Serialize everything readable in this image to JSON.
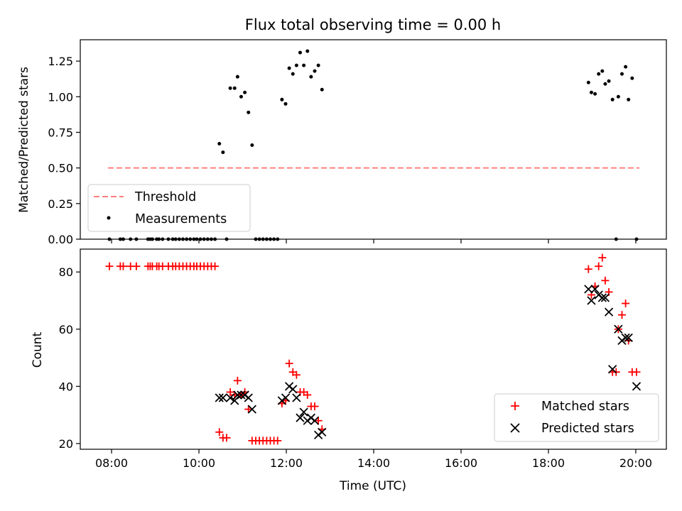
{
  "chart_data": [
    {
      "type": "scatter",
      "title": "Flux total observing time = 0.00 h",
      "xlabel": "",
      "ylabel": "Matched/Predicted stars",
      "xlim": [
        "07:17",
        "20:42"
      ],
      "ylim": [
        0,
        1.4
      ],
      "yticks": [
        "0.00",
        "0.25",
        "0.50",
        "0.75",
        "1.00",
        "1.25"
      ],
      "grid": false,
      "legend": {
        "placement": "lower-left",
        "entries": [
          {
            "label": "Threshold",
            "marker": "dashed-line",
            "color": "#ff7f7f"
          },
          {
            "label": "Measurements",
            "marker": "dot",
            "color": "#000000"
          }
        ]
      },
      "series": [
        {
          "name": "Threshold",
          "kind": "line",
          "color": "#ff7f7f",
          "style": "dashed",
          "points": [
            [
              "07:55",
              0.5
            ],
            [
              "20:05",
              0.5
            ]
          ]
        },
        {
          "name": "Measurements",
          "kind": "dots",
          "color": "#000000",
          "points": [
            [
              "07:57",
              0
            ],
            [
              "08:12",
              0
            ],
            [
              "08:16",
              0
            ],
            [
              "08:26",
              0
            ],
            [
              "08:34",
              0
            ],
            [
              "08:50",
              0
            ],
            [
              "08:53",
              0
            ],
            [
              "08:56",
              0
            ],
            [
              "09:02",
              0
            ],
            [
              "09:05",
              0
            ],
            [
              "09:10",
              0
            ],
            [
              "09:18",
              0
            ],
            [
              "09:24",
              0
            ],
            [
              "09:28",
              0
            ],
            [
              "09:33",
              0
            ],
            [
              "09:38",
              0
            ],
            [
              "09:43",
              0
            ],
            [
              "09:48",
              0
            ],
            [
              "09:53",
              0
            ],
            [
              "09:57",
              0
            ],
            [
              "10:02",
              0
            ],
            [
              "10:07",
              0
            ],
            [
              "10:12",
              0
            ],
            [
              "10:17",
              0
            ],
            [
              "10:22",
              0
            ],
            [
              "10:38",
              0
            ],
            [
              "10:28",
              0.67
            ],
            [
              "10:33",
              0.61
            ],
            [
              "10:43",
              1.06
            ],
            [
              "10:49",
              1.06
            ],
            [
              "10:53",
              1.14
            ],
            [
              "10:58",
              1.0
            ],
            [
              "11:03",
              1.03
            ],
            [
              "11:08",
              0.89
            ],
            [
              "11:13",
              0.66
            ],
            [
              "11:18",
              0
            ],
            [
              "11:23",
              0
            ],
            [
              "11:28",
              0
            ],
            [
              "11:33",
              0
            ],
            [
              "11:38",
              0
            ],
            [
              "11:43",
              0
            ],
            [
              "11:48",
              0
            ],
            [
              "11:54",
              0.98
            ],
            [
              "11:59",
              0.95
            ],
            [
              "12:04",
              1.2
            ],
            [
              "12:09",
              1.16
            ],
            [
              "12:14",
              1.22
            ],
            [
              "12:19",
              1.31
            ],
            [
              "12:24",
              1.22
            ],
            [
              "12:29",
              1.32
            ],
            [
              "12:34",
              1.14
            ],
            [
              "12:39",
              1.18
            ],
            [
              "12:44",
              1.22
            ],
            [
              "12:49",
              1.05
            ],
            [
              "18:55",
              1.1
            ],
            [
              "18:59",
              1.03
            ],
            [
              "19:04",
              1.02
            ],
            [
              "19:09",
              1.16
            ],
            [
              "19:14",
              1.18
            ],
            [
              "19:18",
              1.09
            ],
            [
              "19:23",
              1.11
            ],
            [
              "19:28",
              0.98
            ],
            [
              "19:33",
              0
            ],
            [
              "19:36",
              1.0
            ],
            [
              "19:41",
              1.16
            ],
            [
              "19:46",
              1.21
            ],
            [
              "19:50",
              0.98
            ],
            [
              "19:55",
              1.13
            ],
            [
              "20:01",
              0
            ]
          ]
        }
      ]
    },
    {
      "type": "scatter",
      "title": "",
      "xlabel": "Time (UTC)",
      "ylabel": "Count",
      "xlim": [
        "07:17",
        "20:42"
      ],
      "xticks": [
        "08:00",
        "10:00",
        "12:00",
        "14:00",
        "16:00",
        "18:00",
        "20:00"
      ],
      "ylim": [
        18,
        88
      ],
      "yticks": [
        "20",
        "40",
        "60",
        "80"
      ],
      "grid": false,
      "legend": {
        "placement": "lower-right",
        "entries": [
          {
            "label": "Matched stars",
            "marker": "plus",
            "color": "#ff0000"
          },
          {
            "label": "Predicted stars",
            "marker": "x",
            "color": "#000000"
          }
        ]
      },
      "series": [
        {
          "name": "Matched stars",
          "kind": "plus",
          "color": "#ff0000",
          "points": [
            [
              "07:57",
              82
            ],
            [
              "08:12",
              82
            ],
            [
              "08:16",
              82
            ],
            [
              "08:26",
              82
            ],
            [
              "08:34",
              82
            ],
            [
              "08:50",
              82
            ],
            [
              "08:53",
              82
            ],
            [
              "08:56",
              82
            ],
            [
              "09:02",
              82
            ],
            [
              "09:05",
              82
            ],
            [
              "09:10",
              82
            ],
            [
              "09:18",
              82
            ],
            [
              "09:24",
              82
            ],
            [
              "09:28",
              82
            ],
            [
              "09:33",
              82
            ],
            [
              "09:38",
              82
            ],
            [
              "09:43",
              82
            ],
            [
              "09:48",
              82
            ],
            [
              "09:53",
              82
            ],
            [
              "09:57",
              82
            ],
            [
              "10:02",
              82
            ],
            [
              "10:07",
              82
            ],
            [
              "10:12",
              82
            ],
            [
              "10:17",
              82
            ],
            [
              "10:22",
              82
            ],
            [
              "10:28",
              24
            ],
            [
              "10:33",
              22
            ],
            [
              "10:38",
              22
            ],
            [
              "10:43",
              38
            ],
            [
              "10:49",
              37
            ],
            [
              "10:53",
              42
            ],
            [
              "10:58",
              37
            ],
            [
              "11:03",
              38
            ],
            [
              "11:08",
              32
            ],
            [
              "11:13",
              21
            ],
            [
              "11:18",
              21
            ],
            [
              "11:23",
              21
            ],
            [
              "11:28",
              21
            ],
            [
              "11:33",
              21
            ],
            [
              "11:38",
              21
            ],
            [
              "11:43",
              21
            ],
            [
              "11:48",
              21
            ],
            [
              "11:54",
              34
            ],
            [
              "11:59",
              35
            ],
            [
              "12:04",
              48
            ],
            [
              "12:09",
              45
            ],
            [
              "12:14",
              44
            ],
            [
              "12:19",
              38
            ],
            [
              "12:24",
              38
            ],
            [
              "12:29",
              37
            ],
            [
              "12:34",
              33
            ],
            [
              "12:39",
              33
            ],
            [
              "12:44",
              28
            ],
            [
              "12:49",
              25
            ],
            [
              "18:55",
              81
            ],
            [
              "18:59",
              72
            ],
            [
              "19:04",
              75
            ],
            [
              "19:09",
              82
            ],
            [
              "19:14",
              85
            ],
            [
              "19:18",
              77
            ],
            [
              "19:23",
              73
            ],
            [
              "19:28",
              45
            ],
            [
              "19:33",
              45
            ],
            [
              "19:36",
              60
            ],
            [
              "19:41",
              65
            ],
            [
              "19:46",
              69
            ],
            [
              "19:50",
              56
            ],
            [
              "19:55",
              45
            ],
            [
              "20:01",
              45
            ]
          ]
        },
        {
          "name": "Predicted stars",
          "kind": "x",
          "color": "#000000",
          "points": [
            [
              "10:28",
              36
            ],
            [
              "10:33",
              36
            ],
            [
              "10:43",
              36
            ],
            [
              "10:49",
              35
            ],
            [
              "10:53",
              37
            ],
            [
              "10:58",
              37
            ],
            [
              "11:03",
              37
            ],
            [
              "11:08",
              36
            ],
            [
              "11:13",
              32
            ],
            [
              "11:54",
              35
            ],
            [
              "11:59",
              36
            ],
            [
              "12:04",
              40
            ],
            [
              "12:09",
              39
            ],
            [
              "12:14",
              36
            ],
            [
              "12:19",
              29
            ],
            [
              "12:24",
              31
            ],
            [
              "12:29",
              28
            ],
            [
              "12:34",
              29
            ],
            [
              "12:39",
              28
            ],
            [
              "12:44",
              23
            ],
            [
              "12:49",
              24
            ],
            [
              "18:55",
              74
            ],
            [
              "18:59",
              70
            ],
            [
              "19:04",
              74
            ],
            [
              "19:09",
              72
            ],
            [
              "19:14",
              71
            ],
            [
              "19:18",
              71
            ],
            [
              "19:23",
              66
            ],
            [
              "19:28",
              46
            ],
            [
              "19:36",
              60
            ],
            [
              "19:41",
              56
            ],
            [
              "19:46",
              57
            ],
            [
              "19:50",
              57
            ],
            [
              "20:01",
              40
            ]
          ]
        }
      ]
    }
  ]
}
